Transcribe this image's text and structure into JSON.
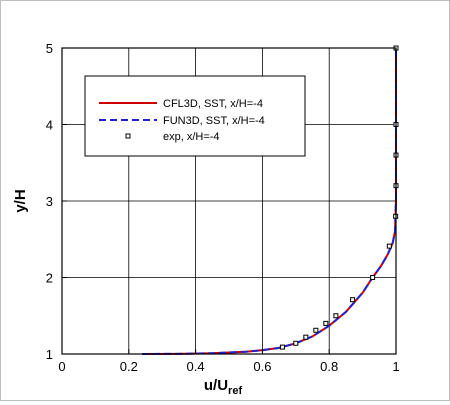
{
  "chart_data": {
    "type": "line",
    "xlabel": "u/U",
    "xlabel_sub": "ref",
    "ylabel": "y/H",
    "xlim": [
      0,
      1
    ],
    "ylim": [
      1,
      5
    ],
    "x_ticks": [
      "0",
      "0.2",
      "0.4",
      "0.6",
      "0.8",
      "1"
    ],
    "y_ticks": [
      "1",
      "2",
      "3",
      "4",
      "5"
    ],
    "grid": true,
    "legend_position": "top-left",
    "series": [
      {
        "name": "CFL3D, SST, x/H=-4",
        "style": "solid",
        "color": "#cc0000",
        "x": [
          0.24,
          0.35,
          0.45,
          0.55,
          0.6,
          0.65,
          0.7,
          0.75,
          0.8,
          0.85,
          0.9,
          0.93,
          0.955,
          0.975,
          0.99,
          0.997,
          1.0,
          1.0
        ],
        "y": [
          1.0,
          1.002,
          1.01,
          1.03,
          1.05,
          1.08,
          1.14,
          1.23,
          1.37,
          1.55,
          1.8,
          2.0,
          2.15,
          2.3,
          2.45,
          2.6,
          3.0,
          5.0
        ]
      },
      {
        "name": "FUN3D, SST, x/H=-4",
        "style": "dashed",
        "color": "#2222cc",
        "x": [
          0.24,
          0.35,
          0.45,
          0.55,
          0.6,
          0.65,
          0.7,
          0.75,
          0.8,
          0.85,
          0.9,
          0.93,
          0.955,
          0.975,
          0.99,
          0.997,
          1.0,
          1.0
        ],
        "y": [
          1.0,
          1.002,
          1.01,
          1.03,
          1.05,
          1.08,
          1.14,
          1.23,
          1.37,
          1.55,
          1.8,
          2.0,
          2.15,
          2.3,
          2.45,
          2.6,
          3.0,
          5.0
        ]
      },
      {
        "name": "exp, x/H=-4",
        "style": "markers",
        "color": "#000000",
        "x": [
          0.66,
          0.7,
          0.73,
          0.76,
          0.79,
          0.82,
          0.87,
          0.93,
          0.98,
          0.999,
          1.0,
          1.0,
          1.0,
          1.0
        ],
        "y": [
          1.09,
          1.14,
          1.22,
          1.31,
          1.4,
          1.5,
          1.71,
          2.0,
          2.41,
          2.8,
          3.2,
          3.6,
          4.0,
          5.0
        ]
      }
    ]
  }
}
